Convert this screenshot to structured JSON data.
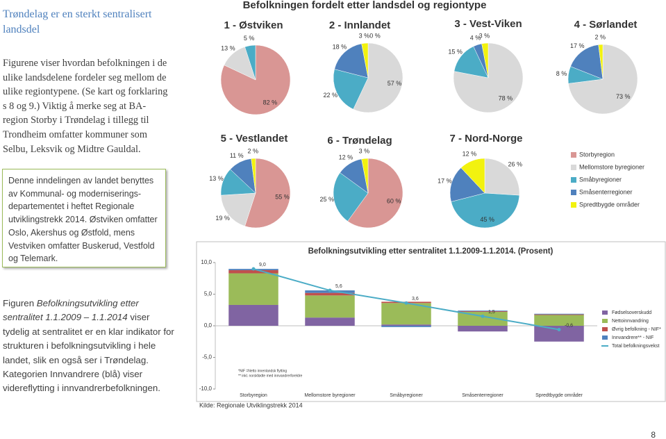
{
  "sidebar": {
    "title": "Trøndelag er en sterkt sentralisert landsdel",
    "intro": "Figurene viser hvordan befolkningen i de ulike landsdelene fordeler seg mellom de ulike regiontypene. (Se kart og forklaring s 8 og 9.) Viktig å merke seg at BA-region Storby i Trøndelag i tillegg til Trondheim omfatter kommuner som Selbu, Leksvik og Midtre Gauldal.",
    "box": "Denne inndelingen av landet benyttes av Kommunal- og moderniserings-departementet i heftet Regionale utviklingstrekk 2014. Østviken omfatter Oslo, Akershus og Østfold, mens Vestviken omfatter Buskerud, Vestfold og Telemark.",
    "figure_note": {
      "before": "Figuren ",
      "italic": "Befolkningsutvikling etter sentralitet 1.1.2009 – 1.1.2014",
      "after": " viser tydelig at sentralitet er en klar indikator for strukturen i befolkningsutvikling i hele landet, slik en også ser i Trøndelag. Kategorien Innvandrere (blå) viser videreflytting i innvandrerbefolkningen."
    }
  },
  "pie_group": {
    "title": "Befolkningen fordelt etter landsdel og regiontype",
    "categories": [
      "Storbyregion",
      "Mellomstore byregioner",
      "Småbyregioner",
      "Småsenterregioner",
      "Spredtbygde områder"
    ],
    "colors": [
      "#d99694",
      "#d9d9d9",
      "#4bacc6",
      "#4f81bd",
      "#f2f20f"
    ]
  },
  "chart_data": [
    {
      "type": "pie",
      "title": "1 - Østviken",
      "values": [
        82,
        13,
        5,
        null,
        null
      ],
      "value_labels": [
        "82 %",
        "13 %",
        "5 %",
        null,
        null
      ]
    },
    {
      "type": "pie",
      "title": "2 - Innlandet",
      "values": [
        0,
        57,
        22,
        18,
        3
      ],
      "value_labels": [
        "0 %",
        "57 %",
        "22 %",
        "18 %",
        "3 %"
      ]
    },
    {
      "type": "pie",
      "title": "3 - Vest-Viken",
      "values": [
        null,
        78,
        15,
        4,
        3
      ],
      "value_labels": [
        null,
        "78 %",
        "15 %",
        "4 %",
        "3 %"
      ]
    },
    {
      "type": "pie",
      "title": "4 - Sørlandet",
      "values": [
        null,
        73,
        8,
        17,
        2
      ],
      "value_labels": [
        null,
        "73 %",
        "8 %",
        "17 %",
        "2 %"
      ]
    },
    {
      "type": "pie",
      "title": "5 - Vestlandet",
      "values": [
        55,
        19,
        13,
        11,
        2
      ],
      "value_labels": [
        "55 %",
        "19 %",
        "13 %",
        "11 %",
        "2 %"
      ]
    },
    {
      "type": "pie",
      "title": "6 - Trøndelag",
      "values": [
        60,
        null,
        25,
        12,
        3
      ],
      "value_labels": [
        "60 %",
        null,
        "25 %",
        "12 %",
        "3 %"
      ]
    },
    {
      "type": "pie",
      "title": "7 - Nord-Norge",
      "values": [
        null,
        26,
        45,
        17,
        12
      ],
      "value_labels": [
        null,
        "26 %",
        "45 %",
        "17 %",
        "12 %"
      ]
    },
    {
      "type": "bar",
      "stacked": true,
      "title": "Befolkningsutvikling etter sentralitet 1.1.2009-1.1.2014. (Prosent)",
      "categories": [
        "Storbyregion",
        "Mellomstore byregioner",
        "Småbyregioner",
        "Småsenterregioner",
        "Spredtbygde områder"
      ],
      "series": [
        {
          "name": "Fødselsoverskudd",
          "color": "#8064a2",
          "values": [
            3.3,
            1.3,
            0.2,
            -0.9,
            -2.5
          ]
        },
        {
          "name": "Nettoinnvandring",
          "color": "#9bbb59",
          "values": [
            5.0,
            3.5,
            3.4,
            2.2,
            1.7
          ]
        },
        {
          "name": "Øvrig befolkning - NIF*",
          "color": "#c0504d",
          "values": [
            0.5,
            0.4,
            0.2,
            0.1,
            0.1
          ]
        },
        {
          "name": "Innvandrere** - NIF",
          "color": "#4f81bd",
          "values": [
            0.2,
            0.4,
            -0.2,
            0.1,
            0.1
          ]
        },
        {
          "name": "Total befolkningsvekst",
          "color": "#4bacc6",
          "type": "line",
          "values": [
            9.0,
            5.6,
            3.6,
            1.5,
            -0.6
          ],
          "value_labels": [
            "9,0",
            "5,6",
            "3,6",
            "1,5",
            "-0,6"
          ]
        }
      ],
      "ylim": [
        -10,
        10
      ],
      "yticks": [
        {
          "value": 10,
          "label": "10,0"
        },
        {
          "value": 5,
          "label": "5,0"
        },
        {
          "value": 0,
          "label": "0,0"
        },
        {
          "value": -5,
          "label": "-5,0"
        },
        {
          "value": -10,
          "label": "-10,0"
        }
      ],
      "annotations": [
        "*NIF =Netto innenlandsk flytting",
        "** inkl. norskfødte med innvandrerforeldre"
      ]
    }
  ],
  "source": "Kilde: Regionale Utviklingstrekk 2014",
  "page_number": "8"
}
